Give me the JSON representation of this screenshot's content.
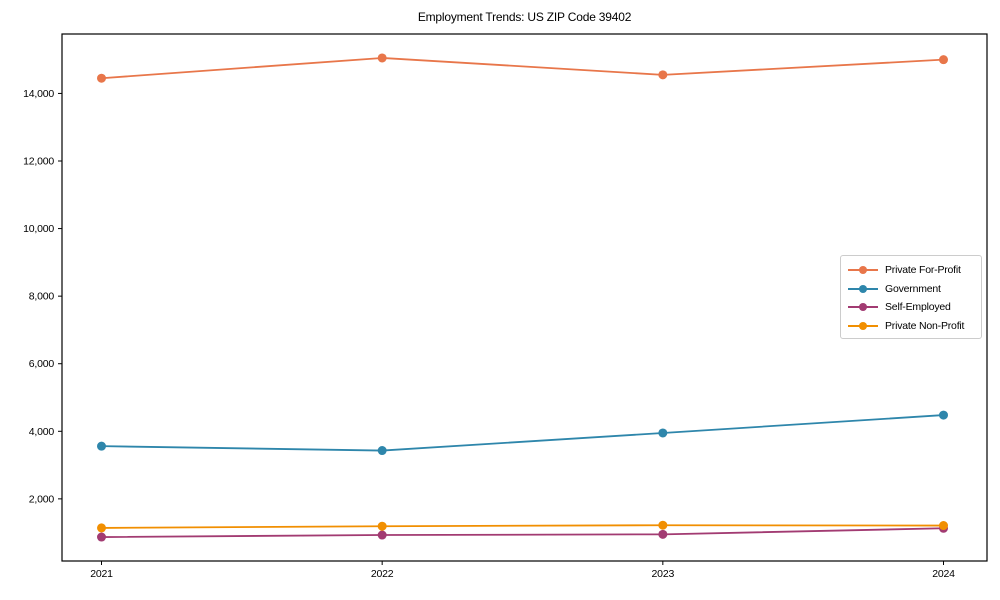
{
  "chart_data": {
    "type": "line",
    "title": "Employment Trends: US ZIP Code 39402",
    "categories": [
      "2021",
      "2022",
      "2023",
      "2024"
    ],
    "series": [
      {
        "name": "Private For-Profit",
        "color": "#E8764A",
        "values": [
          14450,
          15050,
          14550,
          15000
        ]
      },
      {
        "name": "Government",
        "color": "#2E86AB",
        "values": [
          3560,
          3430,
          3950,
          4480
        ]
      },
      {
        "name": "Self-Employed",
        "color": "#A23B72",
        "values": [
          870,
          930,
          950,
          1130
        ]
      },
      {
        "name": "Private Non-Profit",
        "color": "#F18F01",
        "values": [
          1140,
          1190,
          1220,
          1210
        ]
      }
    ],
    "xlabel": "",
    "ylabel": "",
    "ylim": [
      161,
      15759
    ],
    "yticks": [
      2000,
      4000,
      6000,
      8000,
      10000,
      12000,
      14000
    ],
    "ytick_labels": [
      "2,000",
      "4,000",
      "6,000",
      "8,000",
      "10,000",
      "12,000",
      "14,000"
    ],
    "grid": false,
    "legend_position": "center-right",
    "marker": "circle"
  },
  "colors": {
    "background": "#ffffff",
    "axis": "#000000",
    "text": "#000000",
    "legend_border": "#cccccc"
  }
}
